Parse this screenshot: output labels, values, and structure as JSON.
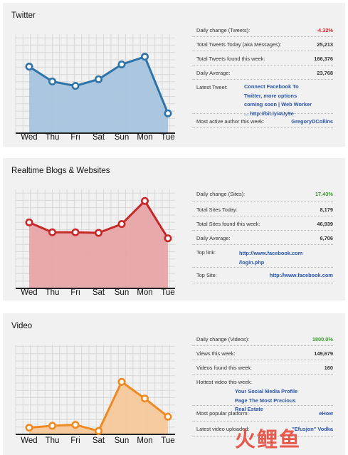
{
  "panels": [
    {
      "title": "Twitter",
      "stats": [
        {
          "label": "Daily change (Tweets):",
          "value": "-4.32%",
          "kind": "neg"
        },
        {
          "label": "Total Tweets Today (aka Messages):",
          "value": "25,213",
          "kind": ""
        },
        {
          "label": "Total Tweets found this week:",
          "value": "166,376",
          "kind": ""
        },
        {
          "label": "Daily Average:",
          "value": "23,768",
          "kind": ""
        },
        {
          "label": "Latest Tweet:",
          "lines": [
            "Connect Facebook To",
            "Twitter, more options",
            "coming soon | Web Worker",
            "... http://bit.ly/4Uy9e"
          ]
        },
        {
          "label": "Most active author this week:",
          "value": "GregoryDCollins",
          "kind": "link"
        }
      ]
    },
    {
      "title": "Realtime Blogs & Websites",
      "stats": [
        {
          "label": "Daily change (Sites):",
          "value": "17.43%",
          "kind": "pos"
        },
        {
          "label": "Total Sites Today:",
          "value": "8,179",
          "kind": ""
        },
        {
          "label": "Total Sites found this week:",
          "value": "46,939",
          "kind": ""
        },
        {
          "label": "Daily Average:",
          "value": "6,706",
          "kind": ""
        },
        {
          "label": "Top link:",
          "lines": [
            "http://www.facebook.com",
            "/login.php"
          ]
        },
        {
          "label": "Top Site:",
          "value": "http://www.facebook.com",
          "kind": "link"
        }
      ]
    },
    {
      "title": "Video",
      "stats": [
        {
          "label": "Daily change (Videos):",
          "value": "1800.0%",
          "kind": "pos"
        },
        {
          "label": "Views this week:",
          "value": "149,679",
          "kind": ""
        },
        {
          "label": "Videos found this week:",
          "value": "160",
          "kind": ""
        },
        {
          "label": "Hottest video this week:",
          "lines": [
            "Your Social Media Profile",
            "Page The Most Precious",
            "Real Estate"
          ]
        },
        {
          "label": "Most popular platform:",
          "value": "eHow",
          "kind": "link"
        },
        {
          "label": "Latest video uploaded:",
          "value": "\"Efusjon\" Vodka",
          "kind": "link"
        }
      ]
    }
  ],
  "chart_data": [
    {
      "type": "area",
      "categories": [
        "Wed",
        "Thu",
        "Fri",
        "Sat",
        "Sun",
        "Mon",
        "Tue"
      ],
      "values": [
        30.5,
        17,
        13,
        19,
        32.5,
        39.5,
        -12
      ],
      "ylim": [
        -30,
        60
      ],
      "color": "#2f74a8",
      "fill": "#a6c4de",
      "grid": true
    },
    {
      "type": "area",
      "categories": [
        "Wed",
        "Thu",
        "Fri",
        "Sat",
        "Sun",
        "Mon",
        "Tue"
      ],
      "values": [
        30,
        21,
        21,
        20.5,
        28.5,
        49.5,
        15.5
      ],
      "ylim": [
        -30,
        60
      ],
      "color": "#c62828",
      "fill": "#e7a4a8",
      "grid": true
    },
    {
      "type": "area",
      "categories": [
        "Wed",
        "Thu",
        "Fri",
        "Sat",
        "Sun",
        "Mon",
        "Tue"
      ],
      "values": [
        -27,
        -25,
        -24,
        -30.5,
        21,
        3.5,
        -15.5
      ],
      "ylim": [
        -34,
        60
      ],
      "color": "#ee8a22",
      "fill": "#f5c89a",
      "grid": true
    }
  ],
  "watermark": "火鲤鱼"
}
